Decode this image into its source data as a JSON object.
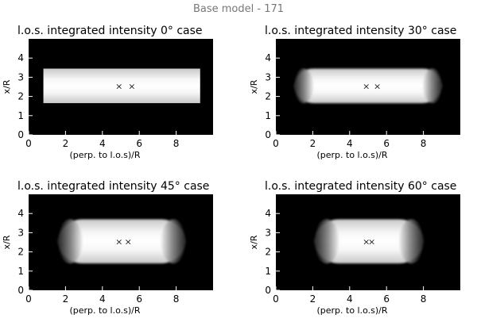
{
  "figure": {
    "suptitle": "Base model - 171"
  },
  "chart_data": [
    {
      "type": "heatmap",
      "title": "l.o.s. integrated intensity  0° case",
      "xlabel": "(perp. to l.o.s)/R",
      "ylabel": "x/R",
      "xlim": [
        0,
        10
      ],
      "ylim": [
        0,
        5
      ],
      "xticks": [
        "0",
        "2",
        "4",
        "6",
        "8"
      ],
      "yticks": [
        "0",
        "1",
        "2",
        "3",
        "4"
      ],
      "bright_region": {
        "x_range": [
          0.8,
          9.3
        ],
        "y_range": [
          1.65,
          3.45
        ],
        "end_style": "flat"
      },
      "markers": [
        {
          "x": 4.9,
          "y": 2.55
        },
        {
          "x": 5.6,
          "y": 2.55
        }
      ],
      "marker_symbol": "×"
    },
    {
      "type": "heatmap",
      "title": "l.o.s. integrated intensity  30° case",
      "xlabel": "(perp. to l.o.s)/R",
      "ylabel": "x/R",
      "xlim": [
        0,
        10
      ],
      "ylim": [
        0,
        5
      ],
      "xticks": [
        "0",
        "2",
        "4",
        "6",
        "8"
      ],
      "yticks": [
        "0",
        "1",
        "2",
        "3",
        "4"
      ],
      "bright_region": {
        "x_range": [
          1.0,
          9.0
        ],
        "y_range": [
          1.65,
          3.45
        ],
        "end_style": "rounded-fade"
      },
      "markers": [
        {
          "x": 4.9,
          "y": 2.55
        },
        {
          "x": 5.5,
          "y": 2.55
        }
      ],
      "marker_symbol": "×"
    },
    {
      "type": "heatmap",
      "title": "l.o.s. integrated intensity  45° case",
      "xlabel": "(perp. to l.o.s)/R",
      "ylabel": "x/R",
      "xlim": [
        0,
        10
      ],
      "ylim": [
        0,
        5
      ],
      "xticks": [
        "0",
        "2",
        "4",
        "6",
        "8"
      ],
      "yticks": [
        "0",
        "1",
        "2",
        "3",
        "4"
      ],
      "bright_region": {
        "x_range": [
          1.6,
          8.5
        ],
        "y_range": [
          1.4,
          3.7
        ],
        "end_style": "rounded-fade"
      },
      "markers": [
        {
          "x": 4.9,
          "y": 2.55
        },
        {
          "x": 5.4,
          "y": 2.55
        }
      ],
      "marker_symbol": "×"
    },
    {
      "type": "heatmap",
      "title": "l.o.s. integrated intensity  60° case",
      "xlabel": "(perp. to l.o.s)/R",
      "ylabel": "x/R",
      "xlim": [
        0,
        10
      ],
      "ylim": [
        0,
        5
      ],
      "xticks": [
        "0",
        "2",
        "4",
        "6",
        "8"
      ],
      "yticks": [
        "0",
        "1",
        "2",
        "3",
        "4"
      ],
      "bright_region": {
        "x_range": [
          2.1,
          8.0
        ],
        "y_range": [
          1.4,
          3.7
        ],
        "end_style": "rounded-fade"
      },
      "markers": [
        {
          "x": 4.9,
          "y": 2.55
        },
        {
          "x": 5.2,
          "y": 2.55
        }
      ],
      "marker_symbol": "×"
    }
  ]
}
